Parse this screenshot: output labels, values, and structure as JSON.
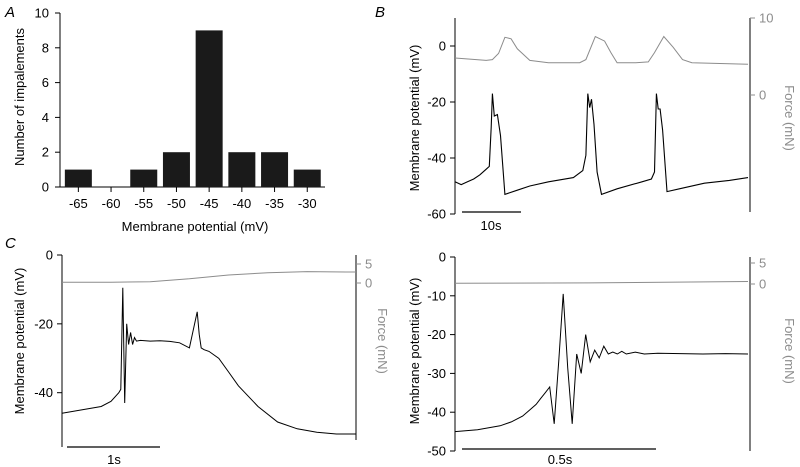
{
  "chart_data": [
    {
      "id": "A",
      "panel_label": "A",
      "type": "bar",
      "title": "",
      "xlabel": "Membrane potential (mV)",
      "ylabel": "Number of impalements",
      "categories": [
        "-65",
        "-60",
        "-55",
        "-50",
        "-45",
        "-40",
        "-35",
        "-30"
      ],
      "values": [
        1,
        0,
        1,
        2,
        9,
        2,
        2,
        1
      ],
      "yticks": [
        0,
        2,
        4,
        6,
        8,
        10
      ],
      "ylim": [
        0,
        10
      ],
      "grid": false,
      "bar_color": "#1a1a1a"
    },
    {
      "id": "B",
      "panel_label": "B",
      "type": "line",
      "title": "",
      "ylabel": "Membrane potential (mV)",
      "y2label": "Force (mN)",
      "yticks": [
        0,
        -20,
        -40,
        -60
      ],
      "ylim": [
        -60,
        10
      ],
      "y2ticks": [
        10,
        0
      ],
      "y2lim": [
        0,
        10
      ],
      "scale_bar_label": "10s",
      "series": [
        {
          "name": "Membrane potential",
          "axis": "left",
          "color": "#000000",
          "x": [
            0,
            1,
            2,
            3,
            4,
            5,
            5.5,
            5.8,
            6,
            6.3,
            6.8,
            7.3,
            8,
            10,
            12,
            15,
            19,
            20.5,
            21,
            21.3,
            21.6,
            21.9,
            22.3,
            22.8,
            23.5,
            26,
            30,
            31.5,
            32,
            32.3,
            32.6,
            32.9,
            33.3,
            34,
            36,
            40,
            44,
            47
          ],
          "values": [
            -48.5,
            -49.5,
            -48.5,
            -47.5,
            -46,
            -44,
            -43,
            -29,
            -17,
            -25,
            -24.5,
            -32,
            -53,
            -51.5,
            -50,
            -48.5,
            -47,
            -44.5,
            -39,
            -17,
            -22,
            -19,
            -28,
            -45,
            -53,
            -51,
            -48.5,
            -47.5,
            -45,
            -17,
            -22.5,
            -22.5,
            -30,
            -52,
            -51,
            -49,
            -48,
            -47
          ]
        },
        {
          "name": "Force",
          "axis": "right",
          "color": "#8c8c8c",
          "x": [
            0,
            5,
            6,
            7,
            8,
            9,
            10,
            12,
            15,
            20,
            21,
            22.5,
            24,
            25,
            26,
            29,
            31,
            32,
            33.5,
            35,
            36.5,
            38,
            47
          ],
          "values": [
            4.8,
            4.5,
            4.6,
            5.4,
            7.5,
            7.3,
            6,
            4.5,
            4.2,
            4.2,
            4.6,
            7.6,
            7,
            5.5,
            4.2,
            4.2,
            4.3,
            5.5,
            7.6,
            6.2,
            4.6,
            4.2,
            4
          ]
        }
      ]
    },
    {
      "id": "C1",
      "panel_label": "C",
      "type": "line",
      "title": "",
      "ylabel": "Membrane potential (mV)",
      "y2label": "Force (mN)",
      "yticks": [
        0,
        -20,
        -40
      ],
      "ylim": [
        -52,
        0
      ],
      "y2ticks": [
        5,
        0
      ],
      "y2lim": [
        0,
        5
      ],
      "scale_bar_label": "1s",
      "series": [
        {
          "name": "Membrane potential",
          "axis": "left",
          "color": "#000000",
          "x": [
            0,
            0.2,
            0.4,
            0.5,
            0.58,
            0.6,
            0.62,
            0.64,
            0.66,
            0.68,
            0.7,
            0.72,
            0.74,
            0.76,
            0.8,
            0.9,
            1.0,
            1.1,
            1.2,
            1.3,
            1.38,
            1.4,
            1.42,
            1.45,
            1.5,
            1.6,
            1.7,
            1.8,
            2.0,
            2.2,
            2.4,
            2.6,
            2.8,
            3.0
          ],
          "values": [
            -46,
            -45,
            -44,
            -42.5,
            -40,
            -39,
            -9.5,
            -43,
            -20,
            -26,
            -22.5,
            -26,
            -24,
            -25,
            -24.8,
            -25,
            -24.9,
            -25.1,
            -25.5,
            -27,
            -16.5,
            -23,
            -27,
            -27.5,
            -28,
            -30,
            -34,
            -38,
            -44,
            -48.5,
            -50.5,
            -51.5,
            -52,
            -52
          ]
        },
        {
          "name": "Force",
          "axis": "right",
          "color": "#8c8c8c",
          "x": [
            0,
            0.5,
            0.9,
            1.3,
            1.7,
            2.1,
            2.5,
            2.9,
            3.0
          ],
          "values": [
            0.2,
            0.2,
            0.35,
            1.1,
            2.1,
            2.7,
            3.0,
            2.9,
            2.9
          ]
        }
      ]
    },
    {
      "id": "C2",
      "panel_label": "",
      "type": "line",
      "title": "",
      "ylabel": "Membrane potential (mV)",
      "y2label": "Force (mN)",
      "yticks": [
        0,
        -10,
        -20,
        -30,
        -40,
        -50
      ],
      "ylim": [
        -50,
        0
      ],
      "y2ticks": [
        5,
        0
      ],
      "y2lim": [
        0,
        5
      ],
      "scale_bar_label": "0.5s",
      "series": [
        {
          "name": "Membrane potential",
          "axis": "left",
          "color": "#000000",
          "x": [
            0,
            0.1,
            0.2,
            0.25,
            0.3,
            0.33,
            0.36,
            0.38,
            0.4,
            0.42,
            0.44,
            0.46,
            0.48,
            0.5,
            0.52,
            0.54,
            0.56,
            0.58,
            0.6,
            0.62,
            0.64,
            0.66,
            0.68,
            0.7,
            0.72,
            0.74,
            0.76,
            0.8,
            0.84,
            0.9,
            1.0,
            1.1,
            1.2,
            1.3
          ],
          "values": [
            -45,
            -44.5,
            -43.5,
            -42.5,
            -41,
            -39.5,
            -38,
            -36.5,
            -35,
            -33.5,
            -43,
            -27,
            -9.5,
            -28.5,
            -43,
            -25,
            -30,
            -20,
            -27,
            -24,
            -26,
            -23,
            -25,
            -24.5,
            -25,
            -24.3,
            -25,
            -24.5,
            -25,
            -24.8,
            -24.9,
            -25,
            -24.9,
            -25
          ]
        },
        {
          "name": "Force",
          "axis": "right",
          "color": "#8c8c8c",
          "x": [
            0,
            0.6,
            1.3
          ],
          "values": [
            0.2,
            0.25,
            0.6
          ]
        }
      ]
    }
  ]
}
